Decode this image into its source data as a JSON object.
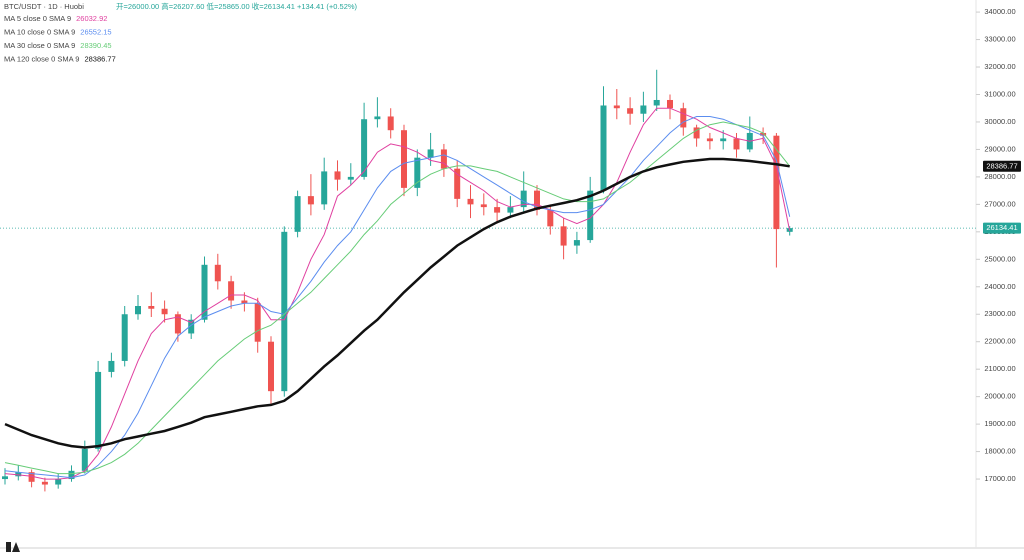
{
  "chart_data": {
    "type": "candlestick",
    "title": "BTC/USDT · 1D · Huobi",
    "subtitle": "开=26000.00 高=26207.60 低=25865.00 收=26134.41 +134.41 (+0.52%)",
    "up_color": "#26a69a",
    "down_color": "#ef5350",
    "candles": {
      "open": [
        17000,
        17100,
        17250,
        16900,
        16800,
        17000,
        17300,
        18100,
        20900,
        21300,
        23000,
        23300,
        23200,
        23000,
        22300,
        22800,
        24800,
        24200,
        23500,
        23400,
        22000,
        20200,
        26000,
        27300,
        27000,
        28200,
        27900,
        28000,
        30100,
        30200,
        29700,
        27600,
        28700,
        29000,
        28300,
        27200,
        27000,
        26900,
        26700,
        26900,
        27500,
        26800,
        26200,
        25500,
        25700,
        27500,
        30600,
        30500,
        30300,
        30600,
        30800,
        30500,
        29800,
        29400,
        29300,
        29400,
        29000,
        29600,
        29500,
        26000
      ],
      "high": [
        17400,
        17500,
        17350,
        17050,
        17200,
        17500,
        18400,
        21300,
        21600,
        23300,
        23700,
        23800,
        23500,
        23100,
        23000,
        25100,
        25200,
        24400,
        23800,
        23600,
        22200,
        26200,
        27500,
        28100,
        28700,
        28600,
        28500,
        30700,
        30900,
        30500,
        29900,
        29000,
        29600,
        29200,
        28600,
        27700,
        27400,
        27200,
        27300,
        28200,
        27700,
        27000,
        26500,
        26000,
        28000,
        31300,
        31200,
        30900,
        31100,
        31900,
        31000,
        30700,
        29900,
        29600,
        29700,
        29600,
        30200,
        29800,
        29600,
        26207.6
      ],
      "low": [
        16800,
        16950,
        16700,
        16550,
        16650,
        16900,
        17200,
        18000,
        20700,
        21100,
        22800,
        22900,
        22700,
        22000,
        22100,
        22700,
        23900,
        23200,
        23100,
        21600,
        19700,
        20000,
        25800,
        26600,
        26800,
        27500,
        27700,
        27900,
        29800,
        29400,
        27300,
        27300,
        28400,
        28000,
        26900,
        26500,
        26600,
        26300,
        26500,
        26700,
        26600,
        25900,
        25000,
        25200,
        25600,
        27400,
        30100,
        29900,
        30000,
        30400,
        30100,
        29500,
        29100,
        29000,
        29000,
        28700,
        28900,
        29200,
        24700,
        25865
      ],
      "close": [
        17100,
        17250,
        16900,
        16800,
        17000,
        17300,
        18100,
        20900,
        21300,
        23000,
        23300,
        23200,
        23000,
        22300,
        22800,
        24800,
        24200,
        23500,
        23400,
        22000,
        20200,
        26000,
        27300,
        27000,
        28200,
        27900,
        28000,
        30100,
        30200,
        29700,
        27600,
        28700,
        29000,
        28300,
        27200,
        27000,
        26900,
        26700,
        26900,
        27500,
        26800,
        26200,
        25500,
        25700,
        27500,
        30600,
        30500,
        30300,
        30600,
        30800,
        30500,
        29800,
        29400,
        29300,
        29400,
        29000,
        29600,
        29500,
        26100,
        26134.41
      ]
    },
    "series": [
      {
        "name": "MA 5 close 0 SMA 9",
        "color": "#e040a0",
        "values": [
          17200,
          17150,
          17100,
          17000,
          17000,
          17050,
          17300,
          17900,
          18900,
          20100,
          21300,
          22300,
          22800,
          22900,
          22700,
          23100,
          23400,
          23700,
          23700,
          23500,
          22800,
          22800,
          23800,
          25000,
          25900,
          27300,
          27700,
          28200,
          28900,
          29200,
          29100,
          28900,
          28600,
          28500,
          28100,
          27800,
          27500,
          27100,
          26900,
          27000,
          27000,
          26800,
          26500,
          26300,
          26500,
          27000,
          27800,
          28900,
          29900,
          30500,
          30500,
          30300,
          30100,
          29800,
          29600,
          29400,
          29300,
          29400,
          28400,
          26032.92
        ]
      },
      {
        "name": "MA 10 close 0 SMA 9",
        "color": "#5b8def",
        "values": [
          17300,
          17250,
          17200,
          17150,
          17100,
          17050,
          17150,
          17500,
          18000,
          18600,
          19400,
          20400,
          21400,
          22200,
          22600,
          22900,
          23100,
          23300,
          23400,
          23400,
          23100,
          23000,
          23600,
          24200,
          24900,
          25500,
          26000,
          26800,
          27600,
          28200,
          28500,
          28600,
          28700,
          28800,
          28600,
          28300,
          28000,
          27700,
          27400,
          27100,
          26900,
          26800,
          26700,
          26700,
          26800,
          27000,
          27500,
          28000,
          28600,
          29100,
          29600,
          30000,
          30200,
          30200,
          30100,
          29900,
          29700,
          29500,
          28600,
          26552.15
        ]
      },
      {
        "name": "MA 30 close 0 SMA 9",
        "color": "#66cc77",
        "values": [
          17600,
          17500,
          17400,
          17300,
          17200,
          17200,
          17250,
          17400,
          17600,
          17900,
          18300,
          18800,
          19300,
          19800,
          20300,
          20800,
          21300,
          21700,
          22100,
          22400,
          22600,
          23000,
          23400,
          23800,
          24300,
          24800,
          25300,
          25900,
          26400,
          27000,
          27400,
          27800,
          28100,
          28300,
          28400,
          28400,
          28300,
          28200,
          28000,
          27800,
          27600,
          27400,
          27200,
          27100,
          27100,
          27200,
          27500,
          27800,
          28200,
          28600,
          29000,
          29400,
          29700,
          29900,
          30000,
          29900,
          29800,
          29600,
          29000,
          28390.45
        ]
      },
      {
        "name": "MA 120 close 0 SMA 9",
        "color": "#111111",
        "values": [
          19000,
          18800,
          18600,
          18450,
          18300,
          18200,
          18150,
          18200,
          18300,
          18450,
          18550,
          18650,
          18750,
          18900,
          19050,
          19250,
          19350,
          19450,
          19550,
          19650,
          19700,
          19850,
          20200,
          20650,
          21100,
          21500,
          21950,
          22400,
          22800,
          23300,
          23800,
          24250,
          24700,
          25100,
          25500,
          25800,
          26100,
          26350,
          26550,
          26700,
          26850,
          26950,
          27050,
          27150,
          27300,
          27500,
          27750,
          28000,
          28200,
          28350,
          28450,
          28550,
          28600,
          28650,
          28650,
          28620,
          28580,
          28520,
          28460,
          28386.77
        ]
      }
    ],
    "ylim": [
      14490,
      34440
    ],
    "yticks": [
      {
        "value": 17000,
        "label": "17000.00"
      },
      {
        "value": 18000,
        "label": "18000.00"
      },
      {
        "value": 19000,
        "label": "19000.00"
      },
      {
        "value": 20000,
        "label": "20000.00"
      },
      {
        "value": 21000,
        "label": "21000.00"
      },
      {
        "value": 22000,
        "label": "22000.00"
      },
      {
        "value": 23000,
        "label": "23000.00"
      },
      {
        "value": 24000,
        "label": "24000.00"
      },
      {
        "value": 25000,
        "label": "25000.00"
      },
      {
        "value": 26000,
        "label": "26000.00"
      },
      {
        "value": 27000,
        "label": "27000.00"
      },
      {
        "value": 28000,
        "label": "28000.00"
      },
      {
        "value": 29000,
        "label": "29000.00"
      },
      {
        "value": 30000,
        "label": "30000.00"
      },
      {
        "value": 31000,
        "label": "31000.00"
      },
      {
        "value": 32000,
        "label": "32000.00"
      },
      {
        "value": 33000,
        "label": "33000.00"
      },
      {
        "value": 34000,
        "label": "34000.00"
      }
    ],
    "grid": false
  }
}
